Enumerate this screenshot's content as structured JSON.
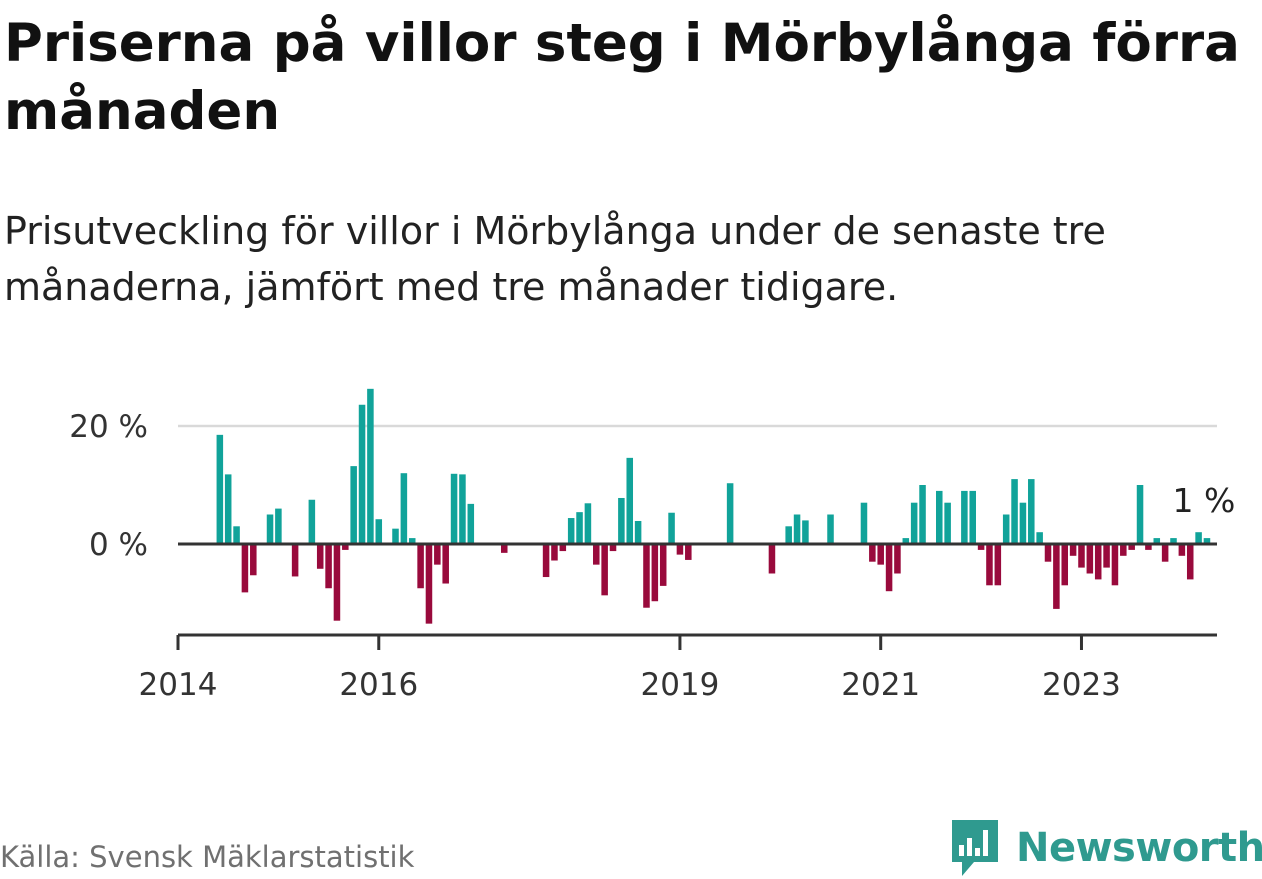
{
  "chart_data": {
    "type": "bar",
    "title": "Priserna på villor steg i Mörbylånga förra månaden",
    "subtitle": "Prisutveckling för villor i Mörbylånga under de senaste tre månaderna, jämfört med tre månader tidigare.",
    "xlabel": "",
    "ylabel": "",
    "ylim": [
      -15,
      27
    ],
    "y_ticks": [
      {
        "value": 0,
        "label": "0 %"
      },
      {
        "value": 20,
        "label": "20 %"
      }
    ],
    "x_range": [
      2014.0,
      2024.35
    ],
    "x_ticks": [
      {
        "value": 2014,
        "label": "2014"
      },
      {
        "value": 2016,
        "label": "2016"
      },
      {
        "value": 2019,
        "label": "2019"
      },
      {
        "value": 2021,
        "label": "2021"
      },
      {
        "value": 2023,
        "label": "2023"
      }
    ],
    "positive_color": "#11a39a",
    "negative_color": "#990a3c",
    "zero_line_color": "#333333",
    "grid_color": "#d9d9d9",
    "start": {
      "year": 2014,
      "month": 6
    },
    "values": [
      18.5,
      11.8,
      3.0,
      -8.2,
      -5.3,
      null,
      5.0,
      6.0,
      null,
      -5.5,
      null,
      7.5,
      -4.2,
      -7.5,
      -13.0,
      -1.0,
      13.2,
      23.6,
      26.3,
      4.2,
      null,
      2.6,
      12.0,
      1.0,
      -7.5,
      -13.5,
      -3.5,
      -6.7,
      11.9,
      11.8,
      6.8,
      null,
      null,
      null,
      -1.5,
      null,
      null,
      null,
      null,
      -5.6,
      -2.8,
      -1.2,
      4.4,
      5.4,
      6.9,
      -3.5,
      -8.7,
      -1.2,
      7.8,
      14.6,
      3.9,
      -10.8,
      -9.7,
      -7.1,
      5.3,
      -1.8,
      -2.7,
      null,
      null,
      null,
      null,
      10.3,
      null,
      null,
      null,
      null,
      -5.0,
      null,
      3.0,
      5.0,
      4.0,
      null,
      null,
      5.0,
      null,
      null,
      null,
      7.0,
      -3.0,
      -3.5,
      -8.0,
      -5.0,
      1.0,
      7.0,
      10.0,
      null,
      9.0,
      7.0,
      null,
      9.0,
      9.0,
      -1.0,
      -7.0,
      -7.0,
      5.0,
      11.0,
      7.0,
      11.0,
      2.0,
      -3.0,
      -11.0,
      -7.0,
      -2.0,
      -4.0,
      -5.0,
      -6.0,
      -4.0,
      -7.0,
      -2.0,
      -1.0,
      10.0,
      -1.0,
      1.0,
      -3.0,
      1.0,
      -2.0,
      -6.0,
      2.0,
      1.0
    ],
    "annotations": [
      {
        "label": "1 %",
        "target": "last"
      }
    ]
  },
  "source": "Källa: Svensk Mäklarstatistik",
  "brand": {
    "name": "Newsworthy",
    "icon": "newsworthy-logo-icon",
    "color": "#2f9a8f"
  }
}
